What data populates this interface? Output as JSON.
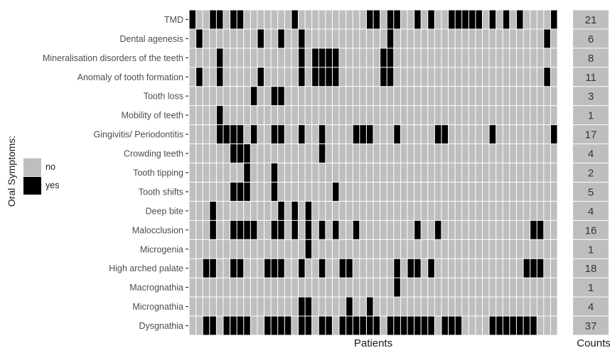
{
  "chart_data": {
    "type": "heatmap",
    "xlabel": "Patients",
    "counts_title": "Counts",
    "legend": {
      "title": "Oral Symptoms:",
      "entries": [
        {
          "label": "no",
          "color": "#bebebe"
        },
        {
          "label": "yes",
          "color": "#000000"
        }
      ]
    },
    "n_patients": 54,
    "rows": [
      {
        "label": "TMD",
        "count": 21,
        "yes_patients": [
          1,
          4,
          5,
          7,
          8,
          16,
          27,
          28,
          30,
          31,
          34,
          36,
          39,
          40,
          41,
          42,
          43,
          45,
          47,
          49,
          54
        ]
      },
      {
        "label": "Dental agenesis",
        "count": 6,
        "yes_patients": [
          2,
          11,
          14,
          17,
          30,
          53
        ]
      },
      {
        "label": "Mineralisation disorders of the teeth",
        "count": 8,
        "yes_patients": [
          5,
          17,
          19,
          20,
          21,
          22,
          29,
          30
        ]
      },
      {
        "label": "Anomaly of tooth formation",
        "count": 11,
        "yes_patients": [
          2,
          5,
          11,
          17,
          19,
          20,
          21,
          22,
          29,
          30,
          53
        ]
      },
      {
        "label": "Tooth loss",
        "count": 3,
        "yes_patients": [
          10,
          13,
          14
        ]
      },
      {
        "label": "Mobility of teeth",
        "count": 1,
        "yes_patients": [
          5
        ]
      },
      {
        "label": "Gingivitis/ Periodontitis",
        "count": 17,
        "yes_patients": [
          5,
          6,
          7,
          8,
          10,
          13,
          14,
          17,
          20,
          25,
          26,
          27,
          31,
          37,
          38,
          45,
          54
        ]
      },
      {
        "label": "Crowding teeth",
        "count": 4,
        "yes_patients": [
          7,
          8,
          9,
          20
        ]
      },
      {
        "label": "Tooth tipping",
        "count": 2,
        "yes_patients": [
          9,
          13
        ]
      },
      {
        "label": "Tooth shifts",
        "count": 5,
        "yes_patients": [
          7,
          8,
          9,
          13,
          22
        ]
      },
      {
        "label": "Deep bite",
        "count": 4,
        "yes_patients": [
          4,
          14,
          16,
          18
        ]
      },
      {
        "label": "Malocclusion",
        "count": 16,
        "yes_patients": [
          4,
          7,
          8,
          9,
          10,
          13,
          14,
          16,
          18,
          20,
          22,
          25,
          34,
          37,
          51,
          52
        ]
      },
      {
        "label": "Microgenia",
        "count": 1,
        "yes_patients": [
          18
        ]
      },
      {
        "label": "High arched palate",
        "count": 18,
        "yes_patients": [
          3,
          4,
          7,
          8,
          12,
          13,
          14,
          17,
          20,
          23,
          24,
          31,
          33,
          34,
          36,
          50,
          51,
          52
        ]
      },
      {
        "label": "Macrognathia",
        "count": 1,
        "yes_patients": [
          31
        ]
      },
      {
        "label": "Micrognathia",
        "count": 4,
        "yes_patients": [
          17,
          18,
          24,
          27
        ]
      },
      {
        "label": "Dysgnathia",
        "count": 37,
        "yes_patients": [
          3,
          4,
          6,
          7,
          8,
          9,
          12,
          13,
          14,
          15,
          17,
          18,
          20,
          21,
          23,
          24,
          25,
          26,
          27,
          28,
          30,
          31,
          32,
          33,
          34,
          35,
          36,
          38,
          39,
          40,
          45,
          46,
          47,
          48,
          49,
          50,
          51
        ]
      }
    ]
  }
}
